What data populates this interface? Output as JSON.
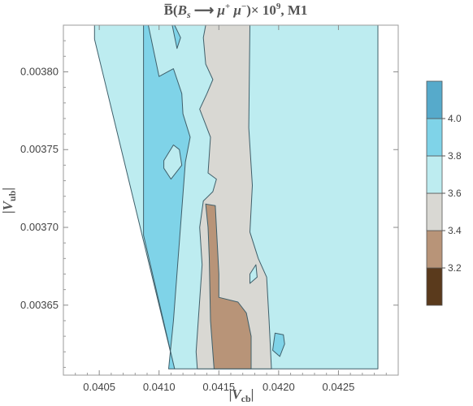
{
  "chart_data": {
    "type": "contour",
    "title": {
      "prefix": "B̅(",
      "b_symbol": "B",
      "b_sub": "s",
      "arrow": " ⟶ ",
      "mu": "μ",
      "plus": "+",
      "minus": "−",
      "times": ")× 10",
      "exponent": "9",
      "suffix": ", M1"
    },
    "xlabel": {
      "bar_left": "|",
      "symbol": "V",
      "sub": "cb",
      "bar_right": "|"
    },
    "ylabel": {
      "bar_left": "|",
      "symbol": "V",
      "sub": "ub",
      "bar_right": "|"
    },
    "xlim": [
      0.0402,
      0.043
    ],
    "ylim": [
      0.003605,
      0.00383
    ],
    "x_ticks": [
      0.0405,
      0.041,
      0.0415,
      0.042,
      0.0425
    ],
    "x_tick_labels": [
      "0.0405",
      "0.0410",
      "0.0415",
      "0.0420",
      "0.0425"
    ],
    "y_ticks": [
      0.00365,
      0.0037,
      0.00375,
      0.0038
    ],
    "y_tick_labels": [
      "0.00365",
      "0.00370",
      "0.00375",
      "0.00380"
    ],
    "levels": [
      {
        "range": [
          3.0,
          3.2
        ],
        "color": "#5a3a1c"
      },
      {
        "range": [
          3.2,
          3.4
        ],
        "color": "#b89478"
      },
      {
        "range": [
          3.4,
          3.6
        ],
        "color": "#d9d8d3"
      },
      {
        "range": [
          3.6,
          3.8
        ],
        "color": "#bdecf0"
      },
      {
        "range": [
          3.8,
          4.0
        ],
        "color": "#7fd3e8"
      },
      {
        "range": [
          4.0,
          4.2
        ],
        "color": "#56aacb"
      }
    ],
    "legend_ticks": [
      3.2,
      3.4,
      3.6,
      3.8,
      4.0
    ],
    "legend_tick_labels": [
      "3.2",
      "3.4",
      "3.6",
      "3.8",
      "4.0"
    ],
    "legend_placement": "right",
    "data_domain_note": "white (undefined) wedge at lower-left",
    "regions": [
      {
        "level": 3.6,
        "points": [
          [
            0.04046,
            0.00383
          ],
          [
            0.04283,
            0.00383
          ],
          [
            0.04283,
            0.003609
          ],
          [
            0.04113,
            0.003609
          ],
          [
            0.04046,
            0.003821
          ]
        ]
      },
      {
        "level": 3.8,
        "points": [
          [
            0.04087,
            0.00383
          ],
          [
            0.04091,
            0.00383
          ],
          [
            0.041,
            0.003797
          ],
          [
            0.04112,
            0.003802
          ],
          [
            0.04119,
            0.003786
          ],
          [
            0.0412,
            0.003773
          ],
          [
            0.04126,
            0.003758
          ],
          [
            0.04122,
            0.003742
          ],
          [
            0.04112,
            0.00364
          ],
          [
            0.04108,
            0.003609
          ],
          [
            0.04113,
            0.003609
          ],
          [
            0.04087,
            0.003695
          ]
        ]
      },
      {
        "level": 3.6,
        "points": [
          [
            0.04104,
            0.003743
          ],
          [
            0.04112,
            0.003753
          ],
          [
            0.04117,
            0.00375
          ],
          [
            0.04119,
            0.00374
          ],
          [
            0.0411,
            0.003731
          ],
          [
            0.04104,
            0.003738
          ]
        ]
      },
      {
        "level": 3.8,
        "points": [
          [
            0.04111,
            0.00383
          ],
          [
            0.04115,
            0.003815
          ],
          [
            0.04118,
            0.003822
          ],
          [
            0.04113,
            0.00383
          ]
        ]
      },
      {
        "level": 3.4,
        "points": [
          [
            0.04139,
            0.00383
          ],
          [
            0.04176,
            0.00383
          ],
          [
            0.04175,
            0.003764
          ],
          [
            0.04178,
            0.003727
          ],
          [
            0.04176,
            0.003697
          ],
          [
            0.04183,
            0.00368
          ],
          [
            0.0419,
            0.003668
          ],
          [
            0.04192,
            0.00364
          ],
          [
            0.04194,
            0.003609
          ],
          [
            0.04132,
            0.003609
          ],
          [
            0.04131,
            0.00362
          ],
          [
            0.04136,
            0.003676
          ],
          [
            0.04134,
            0.0037
          ],
          [
            0.04137,
            0.003717
          ],
          [
            0.04145,
            0.003723
          ],
          [
            0.04148,
            0.003731
          ],
          [
            0.04141,
            0.003735
          ],
          [
            0.04143,
            0.003758
          ],
          [
            0.04134,
            0.003776
          ],
          [
            0.0414,
            0.003786
          ],
          [
            0.04145,
            0.003795
          ],
          [
            0.04139,
            0.003805
          ],
          [
            0.04137,
            0.003822
          ]
        ]
      },
      {
        "level": 3.6,
        "points": [
          [
            0.04176,
            0.00367
          ],
          [
            0.04181,
            0.003676
          ],
          [
            0.04182,
            0.003668
          ],
          [
            0.04176,
            0.003664
          ]
        ]
      },
      {
        "level": 3.2,
        "points": [
          [
            0.04139,
            0.003715
          ],
          [
            0.04147,
            0.003714
          ],
          [
            0.0415,
            0.00367
          ],
          [
            0.0415,
            0.003655
          ],
          [
            0.04166,
            0.003652
          ],
          [
            0.04173,
            0.003645
          ],
          [
            0.04177,
            0.00363
          ],
          [
            0.04177,
            0.003609
          ],
          [
            0.04146,
            0.003609
          ],
          [
            0.04143,
            0.00364
          ],
          [
            0.04142,
            0.00368
          ],
          [
            0.04141,
            0.0037
          ]
        ]
      },
      {
        "level": 3.8,
        "points": [
          [
            0.04197,
            0.003632
          ],
          [
            0.04204,
            0.003631
          ],
          [
            0.04205,
            0.003625
          ],
          [
            0.04201,
            0.003617
          ],
          [
            0.04195,
            0.003621
          ]
        ]
      }
    ]
  }
}
